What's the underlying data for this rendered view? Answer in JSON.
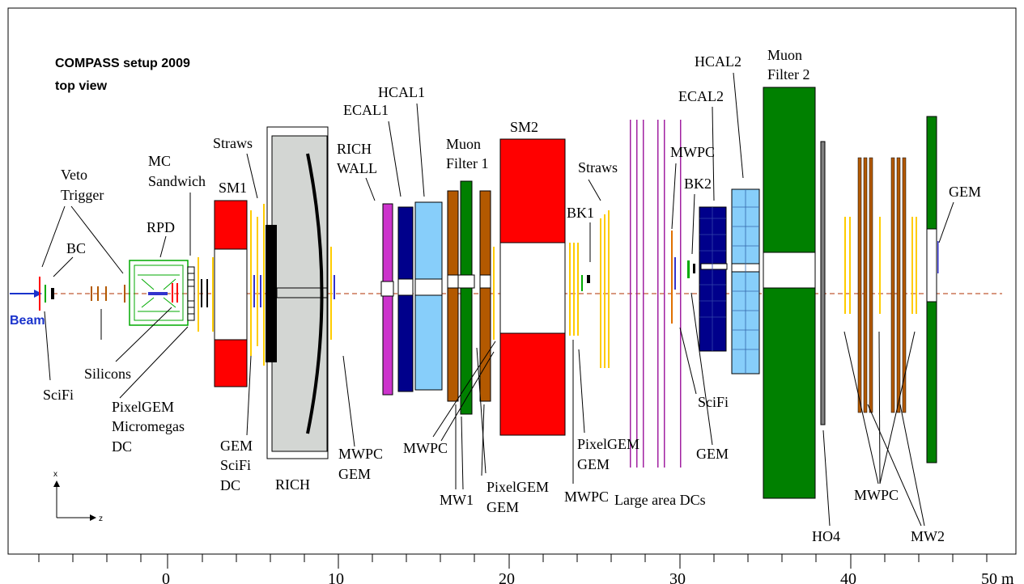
{
  "title": {
    "line1": "COMPASS setup 2009",
    "line2": "top view"
  },
  "beam_label": "Beam",
  "labels": {
    "veto": "Veto",
    "trigger": "Trigger",
    "bc": "BC",
    "rpd": "RPD",
    "mc": "MC",
    "sandwich": "Sandwich",
    "sm1": "SM1",
    "straws1": "Straws",
    "rich_wall_1": "RICH",
    "rich_wall_2": "WALL",
    "ecal1": "ECAL1",
    "hcal1": "HCAL1",
    "muon1_1": "Muon",
    "muon1_2": "Filter 1",
    "sm2": "SM2",
    "straws2": "Straws",
    "bk1": "BK1",
    "mwpc_top": "MWPC",
    "bk2": "BK2",
    "ecal2": "ECAL2",
    "hcal2": "HCAL2",
    "muon2_1": "Muon",
    "muon2_2": "Filter 2",
    "gem_right": "GEM",
    "scifi_left": "SciFi",
    "silicons": "Silicons",
    "pixelgem1": "PixelGEM",
    "micromegas": "Micromegas",
    "dc1": "DC",
    "gem_sm1": "GEM",
    "scifi_sm1": "SciFi",
    "dc_sm1": "DC",
    "rich": "RICH",
    "mwpc_rich": "MWPC",
    "gem_rich": "GEM",
    "mwpc_mf1": "MWPC",
    "mw1": "MW1",
    "pixelgem_mf1": "PixelGEM",
    "gem_mf1": "GEM",
    "pixelgem_sm2": "PixelGEM",
    "gem_sm2": "GEM",
    "mwpc_sm2": "MWPC",
    "large_area_dcs": "Large area DCs",
    "scifi_right": "SciFi",
    "gem_mid": "GEM",
    "ho4": "HO4",
    "mwpc_right": "MWPC",
    "mw2": "MW2"
  },
  "axes_glyph": {
    "x": "x",
    "z": "z"
  },
  "scale": {
    "ticks": [
      "0",
      "10",
      "20",
      "30",
      "40",
      "50 m"
    ]
  },
  "colors": {
    "beam": "#1a33cc",
    "beamline": "#b03000",
    "magnet": "#ff0000",
    "rich": "#d3d6d3",
    "ecal": "#00008b",
    "hcal": "#87cefa",
    "muon_filter": "#008000",
    "iron": "#b35900",
    "straws": "#ffd700",
    "richwall": "#cc33cc",
    "dc": "#a020a0",
    "ho4": "#808080"
  }
}
